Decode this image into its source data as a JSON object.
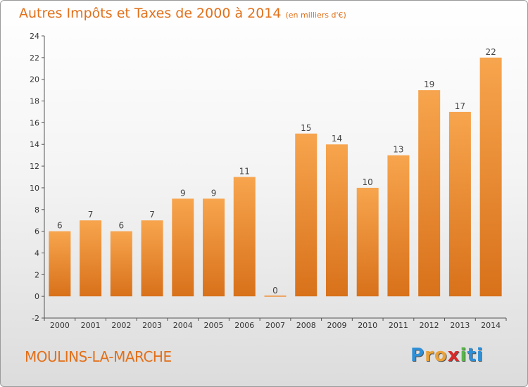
{
  "title": "Autres Impôts et Taxes de 2000 à 2014",
  "subtitle": "(en milliers d'€)",
  "city": "MOULINS-LA-MARCHE",
  "logo": {
    "letters": [
      "P",
      "r",
      "o",
      "x",
      "i",
      "t",
      "i"
    ],
    "colors": [
      "#2f8fd6",
      "#e9a13a",
      "#e9a13a",
      "#d82a2a",
      "#56b847",
      "#2f8fd6",
      "#2f8fd6"
    ]
  },
  "chart_data": {
    "type": "bar",
    "categories": [
      "2000",
      "2001",
      "2002",
      "2003",
      "2004",
      "2005",
      "2006",
      "2007",
      "2008",
      "2009",
      "2010",
      "2011",
      "2012",
      "2013",
      "2014"
    ],
    "values": [
      6,
      7,
      6,
      7,
      9,
      9,
      11,
      0,
      15,
      14,
      10,
      13,
      19,
      17,
      22
    ],
    "data_labels": [
      "6",
      "7",
      "6",
      "7",
      "9",
      "9",
      "11",
      "0",
      "15",
      "14",
      "10",
      "13",
      "19",
      "17",
      "22"
    ],
    "ylim": [
      -2,
      24
    ],
    "yticks": [
      -2,
      0,
      2,
      4,
      6,
      8,
      10,
      12,
      14,
      16,
      18,
      20,
      22,
      24
    ],
    "grid": false,
    "bar_color": "#ef8a2c",
    "xlabel": "",
    "ylabel": ""
  }
}
